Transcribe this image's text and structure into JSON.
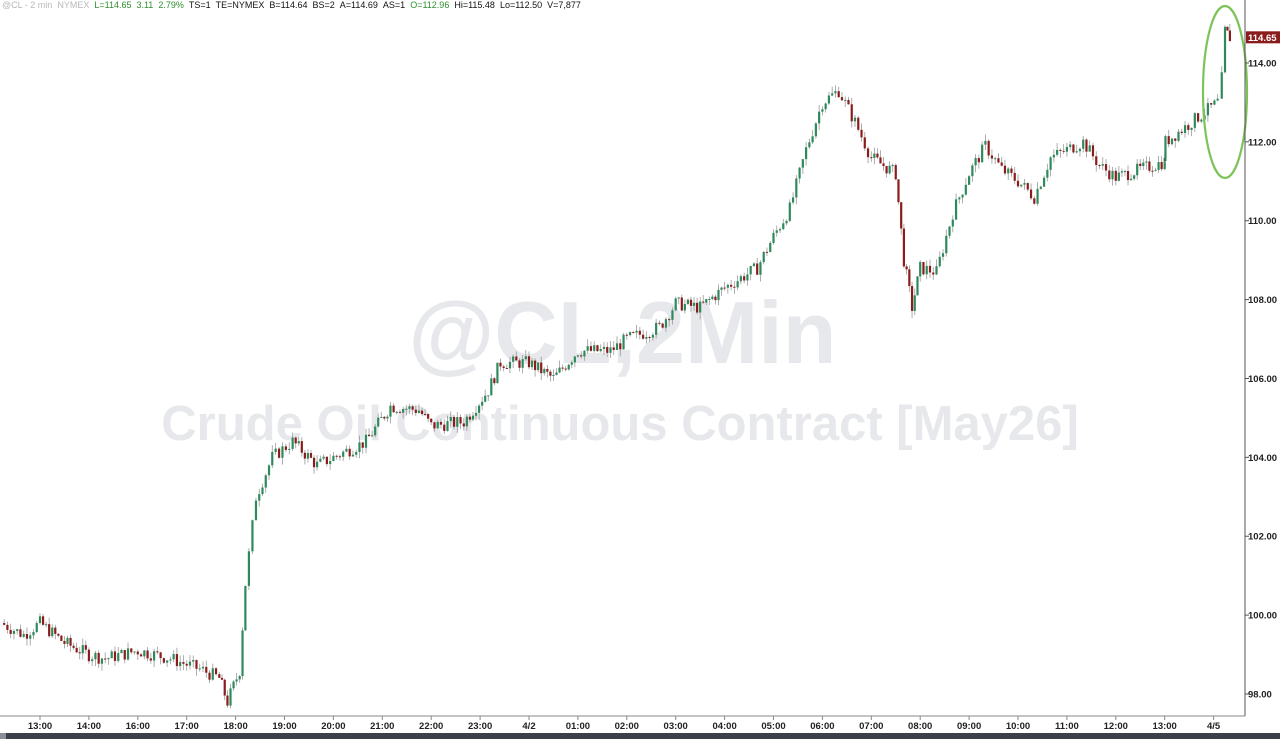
{
  "header": {
    "symbol": "@CL - 2 min",
    "exchange": "NYMEX",
    "last": "L=114.65",
    "change": "3.11",
    "change_pct": "2.79%",
    "ts": "TS=1",
    "te": "TE=NYMEX",
    "bid": "B=114.64",
    "bid_size": "BS=2",
    "ask": "A=114.69",
    "ask_size": "AS=1",
    "open": "O=112.96",
    "high": "Hi=115.48",
    "low": "Lo=112.50",
    "volume": "V=7,877"
  },
  "watermark": {
    "symbol": "@CL,2Min",
    "description": "Crude Oil Continuous Contract [May26]"
  },
  "colors": {
    "up": "#2e8a5c",
    "down": "#8b1c1c",
    "highlight": "#7cc45a",
    "price_tag": "#8b1c1c"
  },
  "chart_data": {
    "type": "candlestick",
    "title": "",
    "ylim": [
      97.6,
      115.6
    ],
    "y_ticks": [
      "98.00",
      "100.00",
      "102.00",
      "104.00",
      "106.00",
      "108.00",
      "110.00",
      "112.00",
      "114.00"
    ],
    "x_ticks": [
      {
        "label": "13:00",
        "time": "01 13:00"
      },
      {
        "label": "14:00",
        "time": "01 14:00"
      },
      {
        "label": "16:00",
        "time": "01 16:00"
      },
      {
        "label": "17:00",
        "time": "01 17:00"
      },
      {
        "label": "18:00",
        "time": "01 18:00"
      },
      {
        "label": "19:00",
        "time": "01 19:00"
      },
      {
        "label": "20:00",
        "time": "01 20:00"
      },
      {
        "label": "21:00",
        "time": "01 21:00"
      },
      {
        "label": "22:00",
        "time": "01 22:00"
      },
      {
        "label": "23:00",
        "time": "01 23:00"
      },
      {
        "label": "4/2",
        "time": "02 00:00"
      },
      {
        "label": "01:00",
        "time": "02 01:00"
      },
      {
        "label": "02:00",
        "time": "02 02:00"
      },
      {
        "label": "03:00",
        "time": "02 03:00"
      },
      {
        "label": "04:00",
        "time": "02 04:00"
      },
      {
        "label": "05:00",
        "time": "02 05:00"
      },
      {
        "label": "06:00",
        "time": "02 06:00"
      },
      {
        "label": "07:00",
        "time": "02 07:00"
      },
      {
        "label": "08:00",
        "time": "02 08:00"
      },
      {
        "label": "09:00",
        "time": "02 09:00"
      },
      {
        "label": "10:00",
        "time": "02 10:00"
      },
      {
        "label": "11:00",
        "time": "02 11:00"
      },
      {
        "label": "12:00",
        "time": "02 12:00"
      },
      {
        "label": "13:00",
        "time": "02 13:00"
      },
      {
        "label": "4/5",
        "time": "05 00:00"
      }
    ],
    "price_path": [
      {
        "t": "01 12:12",
        "p": 99.8
      },
      {
        "t": "01 12:40",
        "p": 99.5
      },
      {
        "t": "01 13:00",
        "p": 99.8
      },
      {
        "t": "01 13:30",
        "p": 99.3
      },
      {
        "t": "01 14:00",
        "p": 99.0
      },
      {
        "t": "01 14:40",
        "p": 98.9
      },
      {
        "t": "01 16:00",
        "p": 99.1
      },
      {
        "t": "01 16:40",
        "p": 98.9
      },
      {
        "t": "01 17:20",
        "p": 98.6
      },
      {
        "t": "01 17:40",
        "p": 98.4
      },
      {
        "t": "01 17:50",
        "p": 97.8
      },
      {
        "t": "01 18:05",
        "p": 98.6
      },
      {
        "t": "01 18:12",
        "p": 100.8
      },
      {
        "t": "01 18:25",
        "p": 103.0
      },
      {
        "t": "01 18:45",
        "p": 104.0
      },
      {
        "t": "01 19:10",
        "p": 104.4
      },
      {
        "t": "01 19:40",
        "p": 103.8
      },
      {
        "t": "01 20:00",
        "p": 104.0
      },
      {
        "t": "01 20:40",
        "p": 104.4
      },
      {
        "t": "01 21:10",
        "p": 105.3
      },
      {
        "t": "01 21:45",
        "p": 105.2
      },
      {
        "t": "01 22:00",
        "p": 104.8
      },
      {
        "t": "01 22:40",
        "p": 104.9
      },
      {
        "t": "01 23:10",
        "p": 105.7
      },
      {
        "t": "01 23:25",
        "p": 106.4
      },
      {
        "t": "02 00:00",
        "p": 106.4
      },
      {
        "t": "02 00:30",
        "p": 106.0
      },
      {
        "t": "02 01:00",
        "p": 106.7
      },
      {
        "t": "02 01:40",
        "p": 106.7
      },
      {
        "t": "02 02:00",
        "p": 107.0
      },
      {
        "t": "02 02:40",
        "p": 107.3
      },
      {
        "t": "02 03:00",
        "p": 107.9
      },
      {
        "t": "02 03:30",
        "p": 107.8
      },
      {
        "t": "02 04:00",
        "p": 108.3
      },
      {
        "t": "02 04:40",
        "p": 108.8
      },
      {
        "t": "02 05:00",
        "p": 109.6
      },
      {
        "t": "02 05:20",
        "p": 110.3
      },
      {
        "t": "02 05:40",
        "p": 111.8
      },
      {
        "t": "02 06:00",
        "p": 113.0
      },
      {
        "t": "02 06:20",
        "p": 113.3
      },
      {
        "t": "02 06:40",
        "p": 112.5
      },
      {
        "t": "02 07:00",
        "p": 111.6
      },
      {
        "t": "02 07:30",
        "p": 111.2
      },
      {
        "t": "02 07:40",
        "p": 109.0
      },
      {
        "t": "02 07:50",
        "p": 107.8
      },
      {
        "t": "02 08:00",
        "p": 108.8
      },
      {
        "t": "02 08:20",
        "p": 108.7
      },
      {
        "t": "02 08:40",
        "p": 110.2
      },
      {
        "t": "02 09:00",
        "p": 111.2
      },
      {
        "t": "02 09:20",
        "p": 111.9
      },
      {
        "t": "02 09:40",
        "p": 111.3
      },
      {
        "t": "02 10:00",
        "p": 111.0
      },
      {
        "t": "02 10:20",
        "p": 110.6
      },
      {
        "t": "02 10:40",
        "p": 111.6
      },
      {
        "t": "02 11:00",
        "p": 111.8
      },
      {
        "t": "02 11:20",
        "p": 112.0
      },
      {
        "t": "02 11:40",
        "p": 111.4
      },
      {
        "t": "02 12:00",
        "p": 111.1
      },
      {
        "t": "02 12:30",
        "p": 111.3
      },
      {
        "t": "02 13:00",
        "p": 111.5
      },
      {
        "t": "02 13:30",
        "p": 111.6
      },
      {
        "t": "02 13:55",
        "p": 112.0
      },
      {
        "t": "05 00:05",
        "p": 113.0
      },
      {
        "t": "05 00:10",
        "p": 113.6
      },
      {
        "t": "05 00:14",
        "p": 114.8
      },
      {
        "t": "05 00:20",
        "p": 114.65
      }
    ],
    "last_price": "114.65"
  }
}
